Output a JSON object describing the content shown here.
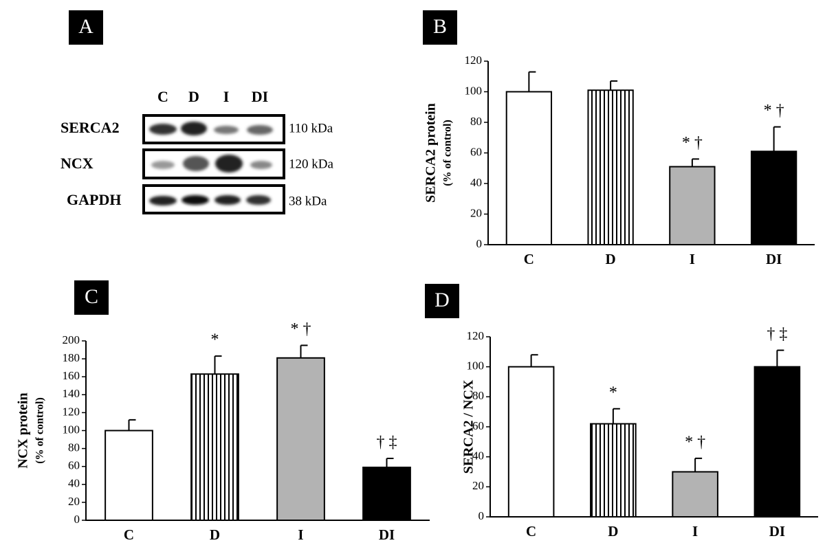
{
  "blot": {
    "panel": "A",
    "lanes": [
      "C",
      "D",
      "I",
      "DI"
    ],
    "rows": [
      {
        "name": "SERCA2",
        "size": "110 kDa"
      },
      {
        "name": "NCX",
        "size": "120 kDa"
      },
      {
        "name": "GAPDH",
        "size": "38 kDa"
      }
    ]
  },
  "chart_data": [
    {
      "type": "bar",
      "panel": "B",
      "ylabel": "SERCA2 protein",
      "ylabel_sub": "(% of control)",
      "categories": [
        "C",
        "D",
        "I",
        "DI"
      ],
      "values": [
        100,
        101,
        51,
        61
      ],
      "errors": [
        13,
        6,
        5,
        16
      ],
      "annotations": [
        null,
        null,
        "* †",
        "* †"
      ],
      "fills": [
        "#ffffff",
        "hatch",
        "#b3b3b3",
        "#000000"
      ],
      "ylim": [
        0,
        120
      ],
      "yticks": [
        0,
        20,
        40,
        60,
        80,
        100,
        120
      ]
    },
    {
      "type": "bar",
      "panel": "C",
      "ylabel": "NCX protein",
      "ylabel_sub": "(% of control)",
      "categories": [
        "C",
        "D",
        "I",
        "DI"
      ],
      "values": [
        100,
        163,
        181,
        59
      ],
      "errors": [
        12,
        20,
        14,
        10
      ],
      "annotations": [
        null,
        "*",
        "* †",
        "† ‡"
      ],
      "fills": [
        "#ffffff",
        "hatch",
        "#b3b3b3",
        "#000000"
      ],
      "ylim": [
        0,
        200
      ],
      "yticks": [
        0,
        20,
        40,
        60,
        80,
        100,
        120,
        140,
        160,
        180,
        200
      ]
    },
    {
      "type": "bar",
      "panel": "D",
      "ylabel": "SERCA2 / NCX",
      "categories": [
        "C",
        "D",
        "I",
        "DI"
      ],
      "values": [
        100,
        62,
        30,
        100
      ],
      "errors": [
        8,
        10,
        9,
        11
      ],
      "annotations": [
        null,
        "*",
        "* †",
        "† ‡"
      ],
      "fills": [
        "#ffffff",
        "hatch",
        "#b3b3b3",
        "#000000"
      ],
      "ylim": [
        0,
        120
      ],
      "yticks": [
        0,
        20,
        40,
        60,
        80,
        100,
        120
      ]
    }
  ]
}
